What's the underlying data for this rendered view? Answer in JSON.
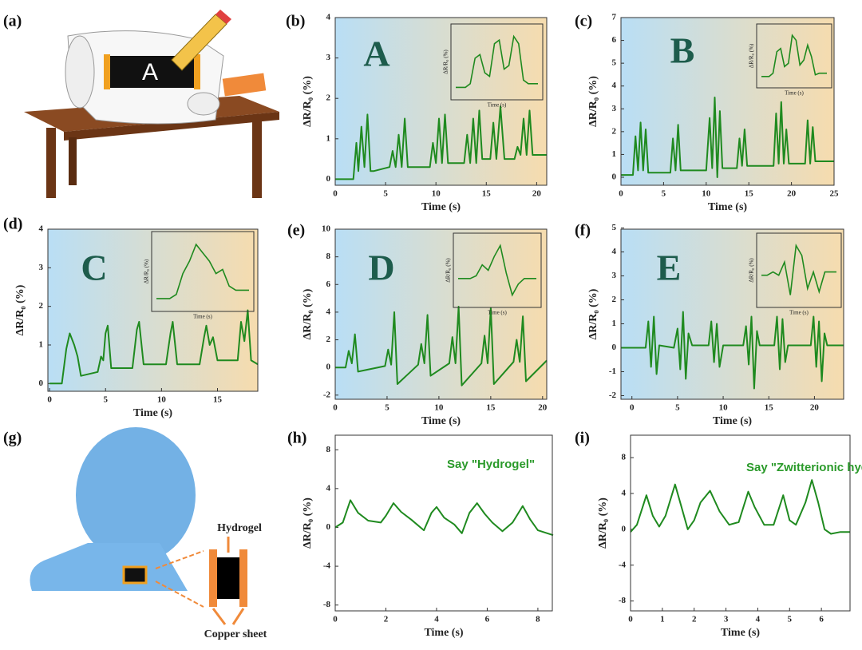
{
  "panels": {
    "a": {
      "label": "(a)",
      "strip_text": "A"
    },
    "g": {
      "label": "(g)",
      "hydrogel": "Hydrogel",
      "copper": "Copper sheet"
    }
  },
  "chart_data": [
    {
      "type": "line",
      "label": "(b)",
      "annotation": "A",
      "annotation_color": "#1d5c4c",
      "xlabel": "Time (s)",
      "ylabel": "ΔR/R₀ (%)",
      "color": "#1f8a1f",
      "background_colors": [
        "#b9def5",
        "#f6dcae"
      ],
      "xlim": [
        0,
        21
      ],
      "ylim": [
        -0.15,
        4
      ],
      "xticks": [
        0,
        5,
        10,
        15,
        20
      ],
      "yticks": [
        0,
        1,
        2,
        3,
        4
      ],
      "x": [
        0,
        1.8,
        2.1,
        2.3,
        2.6,
        2.9,
        3.2,
        3.5,
        3.8,
        5.4,
        5.7,
        6.0,
        6.3,
        6.6,
        6.9,
        7.2,
        9.4,
        9.7,
        10.0,
        10.3,
        10.6,
        10.9,
        11.2,
        12.8,
        13.1,
        13.4,
        13.7,
        14.0,
        14.3,
        14.6,
        15.4,
        15.7,
        16.0,
        16.4,
        16.8,
        17.1,
        17.8,
        18.1,
        18.4,
        18.7,
        19.0,
        19.3,
        19.6,
        21
      ],
      "values": [
        0,
        0,
        0.9,
        0.2,
        1.3,
        0.3,
        1.6,
        0.2,
        0.2,
        0.3,
        0.7,
        0.3,
        1.1,
        0.3,
        1.5,
        0.3,
        0.3,
        0.9,
        0.4,
        1.5,
        0.4,
        1.6,
        0.4,
        0.4,
        1.1,
        0.4,
        1.5,
        0.4,
        1.7,
        0.5,
        0.5,
        1.4,
        0.5,
        1.8,
        0.5,
        0.5,
        0.5,
        0.8,
        0.6,
        1.5,
        0.6,
        1.7,
        0.6,
        0.6
      ],
      "inset": {
        "xlabel": "Time (s)",
        "ylabel": "ΔR/R₀ (%)",
        "values": [
          0,
          0,
          0,
          0.1,
          0.8,
          0.9,
          0.4,
          0.3,
          1.2,
          1.3,
          0.5,
          0.6,
          1.4,
          1.2,
          0.2,
          0.1,
          0.1,
          0.1
        ]
      }
    },
    {
      "type": "line",
      "label": "(c)",
      "annotation": "B",
      "annotation_color": "#1d5c4c",
      "xlabel": "Time (s)",
      "ylabel": "ΔR/R₀ (%)",
      "color": "#1f8a1f",
      "background_colors": [
        "#b9def5",
        "#f6dcae"
      ],
      "xlim": [
        0,
        25
      ],
      "ylim": [
        -0.35,
        7
      ],
      "xticks": [
        0,
        5,
        10,
        15,
        20,
        25
      ],
      "yticks": [
        0,
        1,
        2,
        3,
        4,
        5,
        6,
        7
      ],
      "x": [
        0,
        1.4,
        1.7,
        2.0,
        2.3,
        2.6,
        2.9,
        3.2,
        5.8,
        6.1,
        6.4,
        6.7,
        7.0,
        7.3,
        10.0,
        10.4,
        10.7,
        11.0,
        11.3,
        11.6,
        11.9,
        13.6,
        13.9,
        14.2,
        14.5,
        14.8,
        15.1,
        17.9,
        18.2,
        18.5,
        18.8,
        19.1,
        19.4,
        19.7,
        21.6,
        21.9,
        22.2,
        22.5,
        22.8,
        23.1,
        25
      ],
      "values": [
        0.1,
        0.1,
        1.8,
        0.3,
        2.4,
        0.3,
        2.1,
        0.2,
        0.2,
        1.7,
        0.3,
        2.3,
        0.3,
        0.3,
        0.3,
        2.6,
        0.4,
        3.5,
        0,
        2.9,
        0.4,
        0.4,
        1.7,
        0.5,
        2.1,
        0.5,
        0.5,
        0.5,
        2.8,
        0.6,
        3.3,
        0.6,
        2.1,
        0.6,
        0.6,
        2.5,
        0.6,
        2.2,
        0.7,
        0.7,
        0.7
      ],
      "inset": {
        "xlabel": "Time (s)",
        "ylabel": "ΔR/R₀ (%)",
        "values": [
          0,
          0,
          0,
          0.2,
          1.5,
          1.7,
          0.6,
          0.8,
          2.5,
          2.2,
          0.7,
          1.0,
          1.9,
          1.2,
          0.1,
          0.2,
          0.2,
          0.2
        ]
      }
    },
    {
      "type": "line",
      "label": "(d)",
      "annotation": "C",
      "annotation_color": "#1d5c4c",
      "xlabel": "Time (s)",
      "ylabel": "ΔR/R₀ (%)",
      "color": "#1f8a1f",
      "background_colors": [
        "#b9def5",
        "#f6dcae"
      ],
      "xlim": [
        -0.15,
        18.6
      ],
      "ylim": [
        -0.2,
        4
      ],
      "xticks": [
        0,
        5,
        10,
        15
      ],
      "yticks": [
        0,
        1,
        2,
        3,
        4
      ],
      "x": [
        0,
        1.1,
        1.5,
        1.8,
        2.2,
        2.5,
        2.8,
        4.3,
        4.6,
        4.8,
        5.0,
        5.2,
        5.5,
        7.4,
        7.8,
        8.0,
        8.4,
        10.4,
        10.8,
        11.0,
        11.4,
        13.4,
        13.8,
        14.0,
        14.3,
        14.6,
        15.0,
        16.8,
        17.1,
        17.4,
        17.7,
        18.0,
        18.6
      ],
      "values": [
        0,
        0,
        0.9,
        1.3,
        1.0,
        0.7,
        0.2,
        0.3,
        0.7,
        0.6,
        1.3,
        1.5,
        0.4,
        0.4,
        1.4,
        1.6,
        0.5,
        0.5,
        1.3,
        1.6,
        0.5,
        0.5,
        1.2,
        1.5,
        1.0,
        1.2,
        0.6,
        0.6,
        1.6,
        1.1,
        1.9,
        0.6,
        0.5
      ],
      "inset": {
        "xlabel": "Time (s)",
        "ylabel": "ΔR/R₀ (%)",
        "values": [
          0,
          0,
          0,
          0.1,
          0.6,
          0.9,
          1.3,
          1.1,
          0.9,
          0.6,
          0.7,
          0.3,
          0.2,
          0.2,
          0.2
        ]
      }
    },
    {
      "type": "line",
      "label": "(e)",
      "annotation": "D",
      "annotation_color": "#1d5c4c",
      "xlabel": "Time (s)",
      "ylabel": "ΔR/R₀ (%)",
      "color": "#1f8a1f",
      "background_colors": [
        "#b9def5",
        "#f6dcae"
      ],
      "xlim": [
        0,
        20.4
      ],
      "ylim": [
        -2.3,
        10
      ],
      "xticks": [
        0,
        5,
        10,
        15,
        20
      ],
      "yticks": [
        -2,
        0,
        2,
        4,
        6,
        8,
        10
      ],
      "x": [
        0,
        1.0,
        1.3,
        1.6,
        1.9,
        2.2,
        4.8,
        5.1,
        5.4,
        5.7,
        6.0,
        8.0,
        8.3,
        8.6,
        8.9,
        9.2,
        11.0,
        11.3,
        11.6,
        11.9,
        12.2,
        14.1,
        14.4,
        14.7,
        15.0,
        15.3,
        17.2,
        17.5,
        17.8,
        18.1,
        18.4,
        20.4
      ],
      "values": [
        0,
        0,
        1.2,
        0.3,
        2.4,
        -0.3,
        0.1,
        1.3,
        0.2,
        4.0,
        -1.2,
        0.2,
        1.7,
        0.3,
        3.8,
        -0.6,
        0.3,
        2.2,
        0.3,
        4.4,
        -1.3,
        0.3,
        2.3,
        0.3,
        4.3,
        -1.2,
        0.4,
        2.0,
        0.4,
        3.7,
        -1.0,
        0.5
      ],
      "inset": {
        "xlabel": "Time (s)",
        "ylabel": "ΔR/R₀ (%)",
        "values": [
          0,
          0,
          0,
          0.1,
          0.5,
          0.3,
          0.8,
          1.2,
          0.2,
          -0.6,
          -0.2,
          0,
          0,
          0
        ]
      }
    },
    {
      "type": "line",
      "label": "(f)",
      "annotation": "E",
      "annotation_color": "#1d5c4c",
      "xlabel": "Time (s)",
      "ylabel": "ΔR/R₀ (%)",
      "color": "#1f8a1f",
      "background_colors": [
        "#b9def5",
        "#f6dcae"
      ],
      "xlim": [
        -1.2,
        23.2
      ],
      "ylim": [
        -2.15,
        4.95
      ],
      "xticks": [
        0,
        5,
        10,
        15,
        20
      ],
      "yticks": [
        -2,
        -1,
        0,
        1,
        2,
        3,
        4,
        5
      ],
      "x": [
        -1.2,
        1.5,
        1.8,
        2.1,
        2.4,
        2.7,
        3.0,
        4.6,
        5.0,
        5.3,
        5.6,
        5.9,
        6.2,
        6.6,
        8.4,
        8.7,
        9.0,
        9.3,
        9.6,
        10.0,
        12.2,
        12.5,
        12.8,
        13.1,
        13.4,
        13.7,
        14.0,
        15.6,
        15.9,
        16.2,
        16.5,
        16.8,
        17.1,
        19.6,
        19.9,
        20.2,
        20.5,
        20.8,
        21.1,
        21.4,
        23.2
      ],
      "values": [
        0,
        0,
        1.1,
        -0.8,
        1.3,
        -1.1,
        0.1,
        0,
        0.8,
        -0.9,
        1.5,
        -1.3,
        0.6,
        0.1,
        0.1,
        1.1,
        -0.6,
        1.0,
        -0.8,
        0.1,
        0.1,
        0.9,
        -0.7,
        1.3,
        -1.7,
        0.7,
        0.1,
        0.1,
        1.3,
        -0.9,
        1.2,
        -0.6,
        0.1,
        0.1,
        1.3,
        -0.8,
        1.1,
        -1.4,
        0.6,
        0.1,
        0.1
      ],
      "inset": {
        "xlabel": "Time (s)",
        "ylabel": "ΔR/R₀ (%)",
        "values": [
          0,
          0,
          0.1,
          0,
          0.4,
          -0.6,
          0.9,
          0.6,
          -0.4,
          0.1,
          -0.5,
          0.1,
          0.1,
          0.1
        ]
      }
    },
    {
      "type": "line",
      "label": "(h)",
      "annotation": "Say \"Hydrogel\"",
      "annotation_color": "#2a9a2a",
      "xlabel": "Time (s)",
      "ylabel": "ΔR/R₀ (%)",
      "color": "#1f8a1f",
      "xlim": [
        0,
        8.57
      ],
      "ylim": [
        -8.6,
        9.5
      ],
      "xticks": [
        0,
        2,
        4,
        6,
        8
      ],
      "yticks": [
        -8,
        -4,
        0,
        4,
        8
      ],
      "x": [
        0,
        0.3,
        0.6,
        0.9,
        1.3,
        1.8,
        2.0,
        2.3,
        2.6,
        3.0,
        3.5,
        3.8,
        4.0,
        4.3,
        4.7,
        5.0,
        5.3,
        5.6,
        5.9,
        6.2,
        6.6,
        7.0,
        7.4,
        7.7,
        8.0,
        8.6
      ],
      "values": [
        0,
        0.5,
        2.8,
        1.5,
        0.7,
        0.5,
        1.2,
        2.5,
        1.6,
        0.8,
        -0.3,
        1.5,
        2.1,
        1.0,
        0.3,
        -0.6,
        1.5,
        2.5,
        1.4,
        0.5,
        -0.4,
        0.5,
        2.2,
        0.8,
        -0.3,
        -0.8
      ]
    },
    {
      "type": "line",
      "label": "(i)",
      "annotation": "Say \"Zwitterionic hydrogel\"",
      "annotation_color": "#2a9a2a",
      "xlabel": "Time (s)",
      "ylabel": "ΔR/R₀ (%)",
      "color": "#1f8a1f",
      "xlim": [
        0,
        6.9
      ],
      "ylim": [
        -9.1,
        10.5
      ],
      "xticks": [
        0,
        1,
        2,
        3,
        4,
        5,
        6
      ],
      "yticks": [
        -8,
        -4,
        0,
        4,
        8
      ],
      "x": [
        0,
        0.2,
        0.5,
        0.7,
        0.9,
        1.1,
        1.4,
        1.6,
        1.8,
        2.0,
        2.2,
        2.5,
        2.8,
        3.1,
        3.4,
        3.7,
        3.9,
        4.2,
        4.5,
        4.8,
        5.0,
        5.2,
        5.5,
        5.7,
        5.9,
        6.1,
        6.3,
        6.6,
        6.9
      ],
      "values": [
        -0.3,
        0.5,
        3.8,
        1.5,
        0.3,
        1.5,
        5.0,
        2.5,
        0.0,
        1.0,
        3.0,
        4.3,
        2.0,
        0.5,
        0.8,
        4.2,
        2.5,
        0.5,
        0.5,
        3.8,
        1.0,
        0.5,
        3.0,
        5.5,
        3.0,
        0,
        -0.5,
        -0.3,
        -0.3
      ]
    }
  ]
}
